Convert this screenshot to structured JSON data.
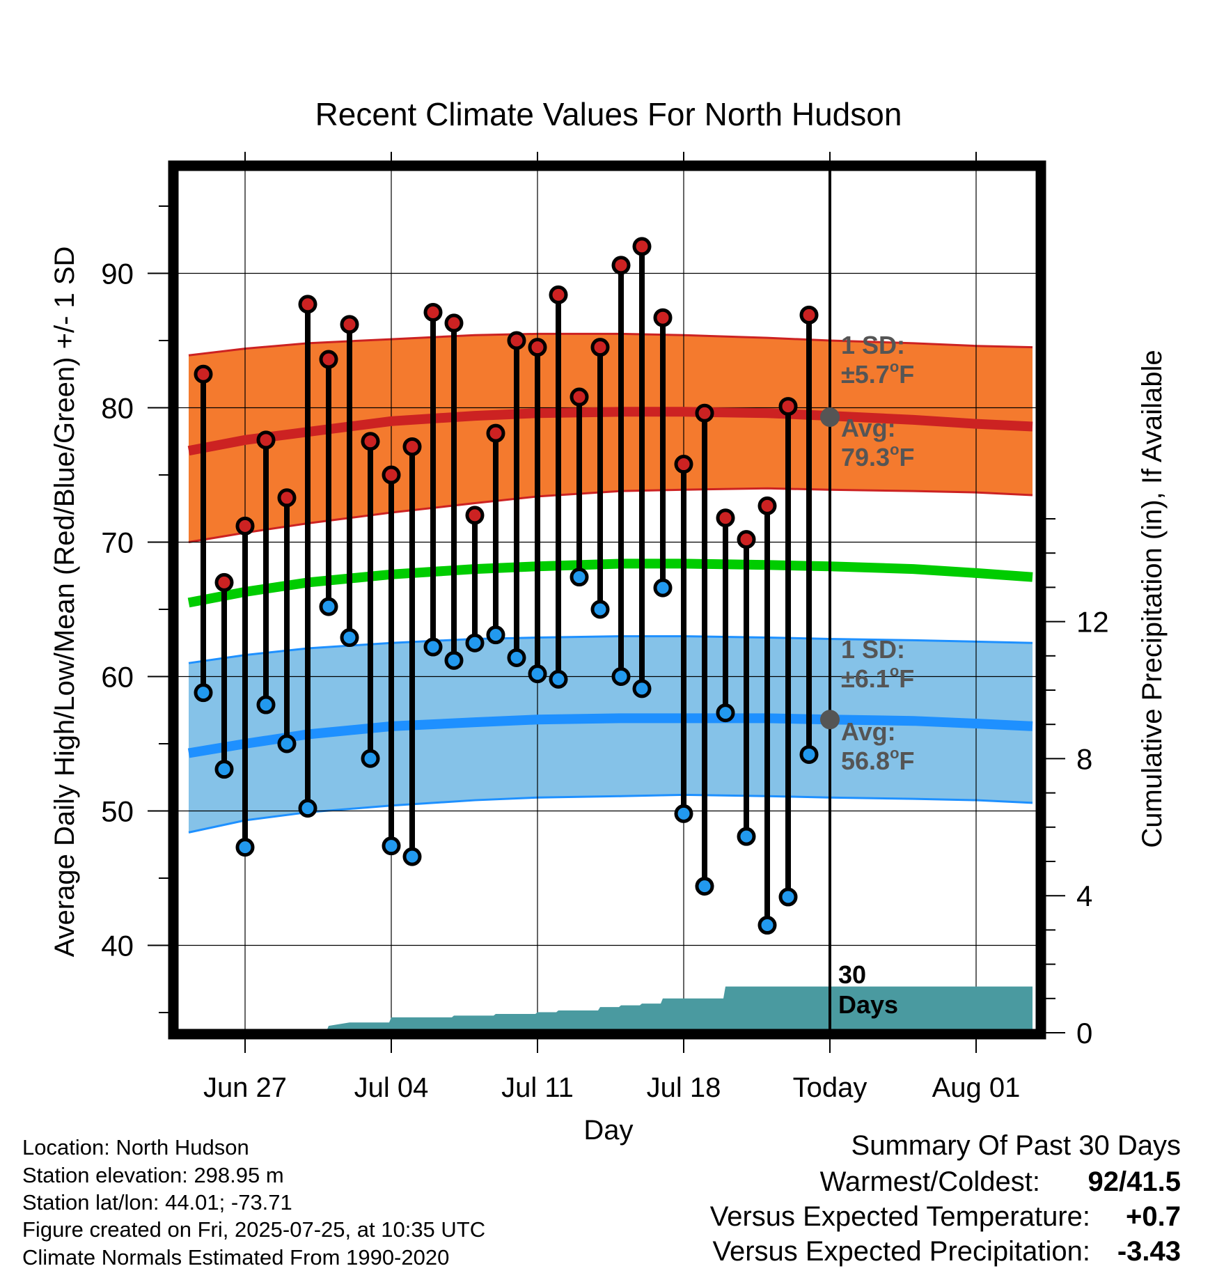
{
  "chart_data": {
    "type": "line",
    "title": "Recent Climate Values For North Hudson",
    "xlabel": "Day",
    "ylabel": "Average Daily High/Low/Mean (Red/Blue/Green) +/- 1 SD",
    "ylabel_right": "Cumulative Precipitation (in), If Available",
    "ylim": [
      34,
      97
    ],
    "ylim_right": [
      0,
      25
    ],
    "y_ticks": [
      40,
      50,
      60,
      70,
      80,
      90
    ],
    "y_ticks_right": [
      0,
      4,
      8,
      12
    ],
    "x_ticks": [
      {
        "day": 2,
        "label": "Jun 27"
      },
      {
        "day": 9,
        "label": "Jul 04"
      },
      {
        "day": 16,
        "label": "Jul 11"
      },
      {
        "day": 23,
        "label": "Jul 18"
      },
      {
        "day": 30,
        "label": "Today"
      },
      {
        "day": 37,
        "label": "Aug 01"
      }
    ],
    "today_day": 30,
    "window_label_1": "30",
    "window_label_2": "Days",
    "normals": {
      "day": [
        -0.7,
        2,
        5,
        9,
        13,
        16,
        20,
        23,
        27,
        30,
        34,
        37,
        39.7
      ],
      "high_avg": [
        76.8,
        77.6,
        78.2,
        79.0,
        79.4,
        79.6,
        79.7,
        79.7,
        79.6,
        79.4,
        79.1,
        78.8,
        78.6
      ],
      "high_upper": [
        83.9,
        84.4,
        84.8,
        85.1,
        85.4,
        85.5,
        85.5,
        85.4,
        85.2,
        85.0,
        84.8,
        84.6,
        84.5
      ],
      "high_lower": [
        70.0,
        70.7,
        71.4,
        72.2,
        72.9,
        73.4,
        73.8,
        73.9,
        74.0,
        73.9,
        73.8,
        73.7,
        73.5
      ],
      "mean_avg": [
        65.5,
        66.3,
        67.0,
        67.6,
        68.0,
        68.2,
        68.4,
        68.4,
        68.3,
        68.2,
        68.0,
        67.7,
        67.4
      ],
      "low_avg": [
        54.3,
        55.0,
        55.7,
        56.3,
        56.6,
        56.8,
        56.9,
        56.9,
        56.9,
        56.8,
        56.7,
        56.5,
        56.3
      ],
      "low_upper": [
        61.0,
        61.6,
        62.1,
        62.5,
        62.8,
        62.9,
        63.0,
        63.0,
        62.9,
        62.8,
        62.7,
        62.6,
        62.5
      ],
      "low_lower": [
        48.4,
        49.3,
        49.9,
        50.4,
        50.8,
        51.0,
        51.1,
        51.2,
        51.1,
        51.0,
        50.9,
        50.8,
        50.6
      ]
    },
    "series": [
      {
        "name": "High",
        "color": "#cc2222",
        "values": [
          82.5,
          67.0,
          71.2,
          77.6,
          73.3,
          87.7,
          83.6,
          86.2,
          77.5,
          75.0,
          77.1,
          87.1,
          86.3,
          72.0,
          78.1,
          85.0,
          84.5,
          88.4,
          80.8,
          84.5,
          90.6,
          92.0,
          86.7,
          75.8,
          79.6,
          71.8,
          70.2,
          72.7,
          80.1,
          86.9
        ]
      },
      {
        "name": "Low",
        "color": "#2299ee",
        "values": [
          58.8,
          53.1,
          47.3,
          57.9,
          55.0,
          50.2,
          65.2,
          62.9,
          53.9,
          47.4,
          46.6,
          62.2,
          61.2,
          62.5,
          63.1,
          61.4,
          60.2,
          59.8,
          67.4,
          65.0,
          60.0,
          59.1,
          66.6,
          49.8,
          44.4,
          57.3,
          48.1,
          41.5,
          43.6,
          54.2
        ]
      }
    ],
    "days": [
      0,
      1,
      2,
      3,
      4,
      5,
      6,
      7,
      8,
      9,
      10,
      11,
      12,
      13,
      14,
      15,
      16,
      17,
      18,
      19,
      20,
      21,
      22,
      23,
      24,
      25,
      26,
      27,
      28,
      29
    ],
    "precipitation": {
      "day": [
        -0.7,
        3.9,
        4.0,
        5.9,
        6.0,
        7.0,
        8.9,
        9.0,
        11.9,
        12.0,
        13.9,
        14.0,
        15.9,
        16.0,
        16.9,
        17.0,
        18.9,
        19.0,
        19.9,
        20.0,
        20.9,
        21.0,
        21.9,
        22.0,
        24.9,
        25.0,
        39.7
      ],
      "value": [
        0,
        0,
        0.05,
        0.05,
        0.2,
        0.3,
        0.3,
        0.45,
        0.45,
        0.5,
        0.5,
        0.55,
        0.55,
        0.6,
        0.6,
        0.65,
        0.65,
        0.75,
        0.75,
        0.8,
        0.8,
        0.85,
        0.85,
        1.0,
        1.0,
        1.35,
        1.35
      ]
    },
    "high_sd_label": "1 SD:",
    "high_sd_value": "±5.7",
    "high_avg_label": "Avg:",
    "high_avg_value": "79.3",
    "low_sd_label": "1 SD:",
    "low_sd_value": "±6.1",
    "low_avg_label": "Avg:",
    "low_avg_value": "56.8",
    "degree_unit": "o",
    "unit_letter": "F",
    "today_high_avg": 79.3,
    "today_low_avg": 56.8
  },
  "footer": {
    "location": "Location: North Hudson",
    "elevation": "Station elevation: 298.95 m",
    "latlon": "Station lat/lon: 44.01; -73.71",
    "created": "Figure created on Fri, 2025-07-25, at 10:35 UTC",
    "normals": "Climate Normals Estimated From 1990-2020"
  },
  "summary": {
    "heading": "Summary Of Past 30 Days",
    "warmest_label": "Warmest/Coldest:",
    "warmest_value": "92/41.5",
    "temp_label": "Versus Expected Temperature:",
    "temp_value": "+0.7",
    "temp_color": "#cc2222",
    "precip_label": "Versus Expected Precipitation:",
    "precip_value": "-3.43",
    "precip_color": "#a0522d"
  },
  "colors": {
    "high_band": "#f47a2e",
    "high_line": "#cc2222",
    "mean_line": "#00cc00",
    "low_band": "#85c2e8",
    "low_line": "#1e90ff",
    "precip_fill": "#4a9aa0",
    "label_gray": "#555555"
  }
}
